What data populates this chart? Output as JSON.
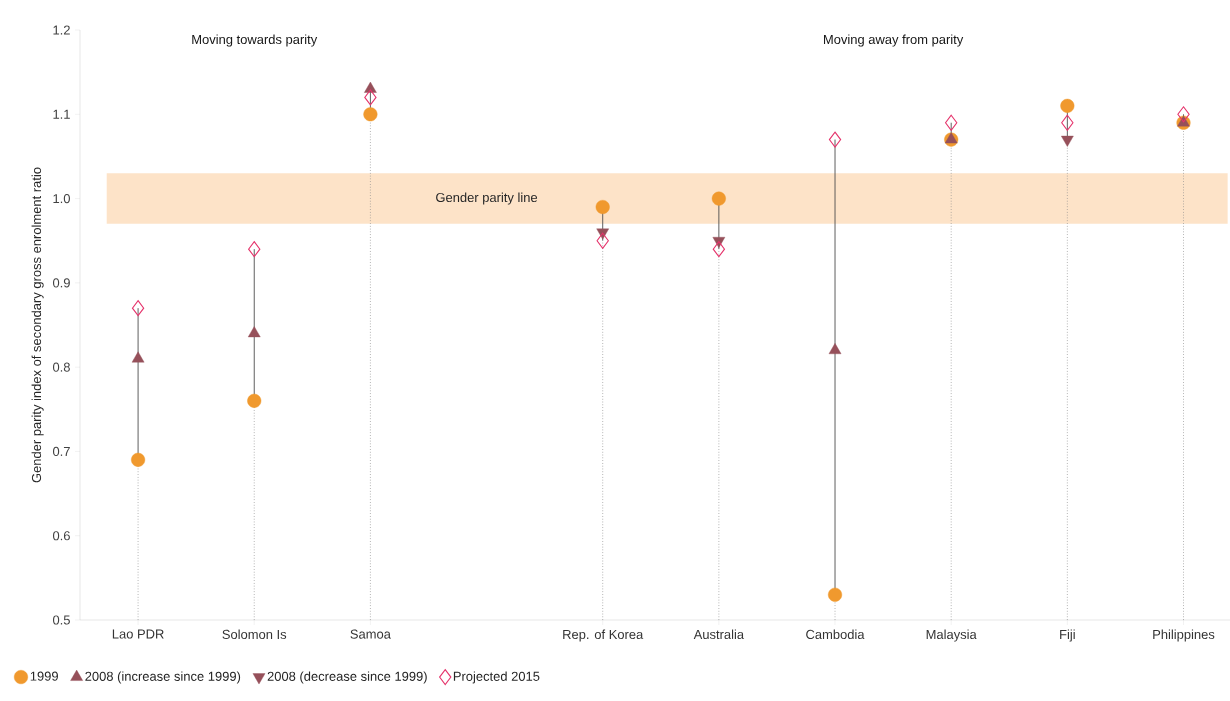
{
  "chart_data": {
    "type": "scatter",
    "ylabel": "Gender parity index of secondary gross enrolment ratio",
    "categories": [
      "Lao PDR",
      "Solomon Is",
      "Samoa",
      null,
      "Rep. of Korea",
      "Australia",
      "Cambodia",
      "Malaysia",
      "Fiji",
      "Philippines"
    ],
    "series": [
      {
        "name": "1999",
        "color": "#f0992e",
        "marker": "circle",
        "values": [
          0.69,
          0.76,
          1.1,
          null,
          0.99,
          1.0,
          0.53,
          1.07,
          1.11,
          1.09
        ]
      },
      {
        "name": "2008 (increase since 1999)",
        "color": "#96505a",
        "marker": "triangle",
        "values": [
          0.81,
          0.84,
          1.13,
          null,
          null,
          null,
          0.82,
          1.07,
          null,
          1.09
        ]
      },
      {
        "name": "2008 (decrease since 1999)",
        "color": "#96505a",
        "marker": "triangle-down",
        "values": [
          null,
          null,
          null,
          null,
          0.96,
          0.95,
          null,
          null,
          1.07,
          null
        ]
      },
      {
        "name": "Projected 2015",
        "color": "#e5336b",
        "marker": "diamond",
        "values": [
          0.87,
          0.94,
          1.12,
          null,
          0.95,
          0.94,
          1.07,
          1.09,
          1.09,
          1.1
        ]
      }
    ],
    "ylim": [
      0.5,
      1.2
    ],
    "yticks": [
      {
        "value": 0.5,
        "label": "0.5"
      },
      {
        "value": 0.6,
        "label": "0.6"
      },
      {
        "value": 0.7,
        "label": "0.7"
      },
      {
        "value": 0.8,
        "label": "0.8"
      },
      {
        "value": 0.9,
        "label": "0.9"
      },
      {
        "value": 1.0,
        "label": "1.0"
      },
      {
        "value": 1.1,
        "label": "1.1"
      },
      {
        "value": 1.2,
        "label": "1.2"
      }
    ],
    "bands": [
      {
        "axis": "y",
        "from": 0.97,
        "to": 1.03,
        "label": "Gender parity line",
        "color": "#fde3c8"
      }
    ],
    "annotations": [
      "Moving towards parity",
      "Moving away from parity"
    ],
    "legend": "bottom",
    "grid": "x"
  }
}
